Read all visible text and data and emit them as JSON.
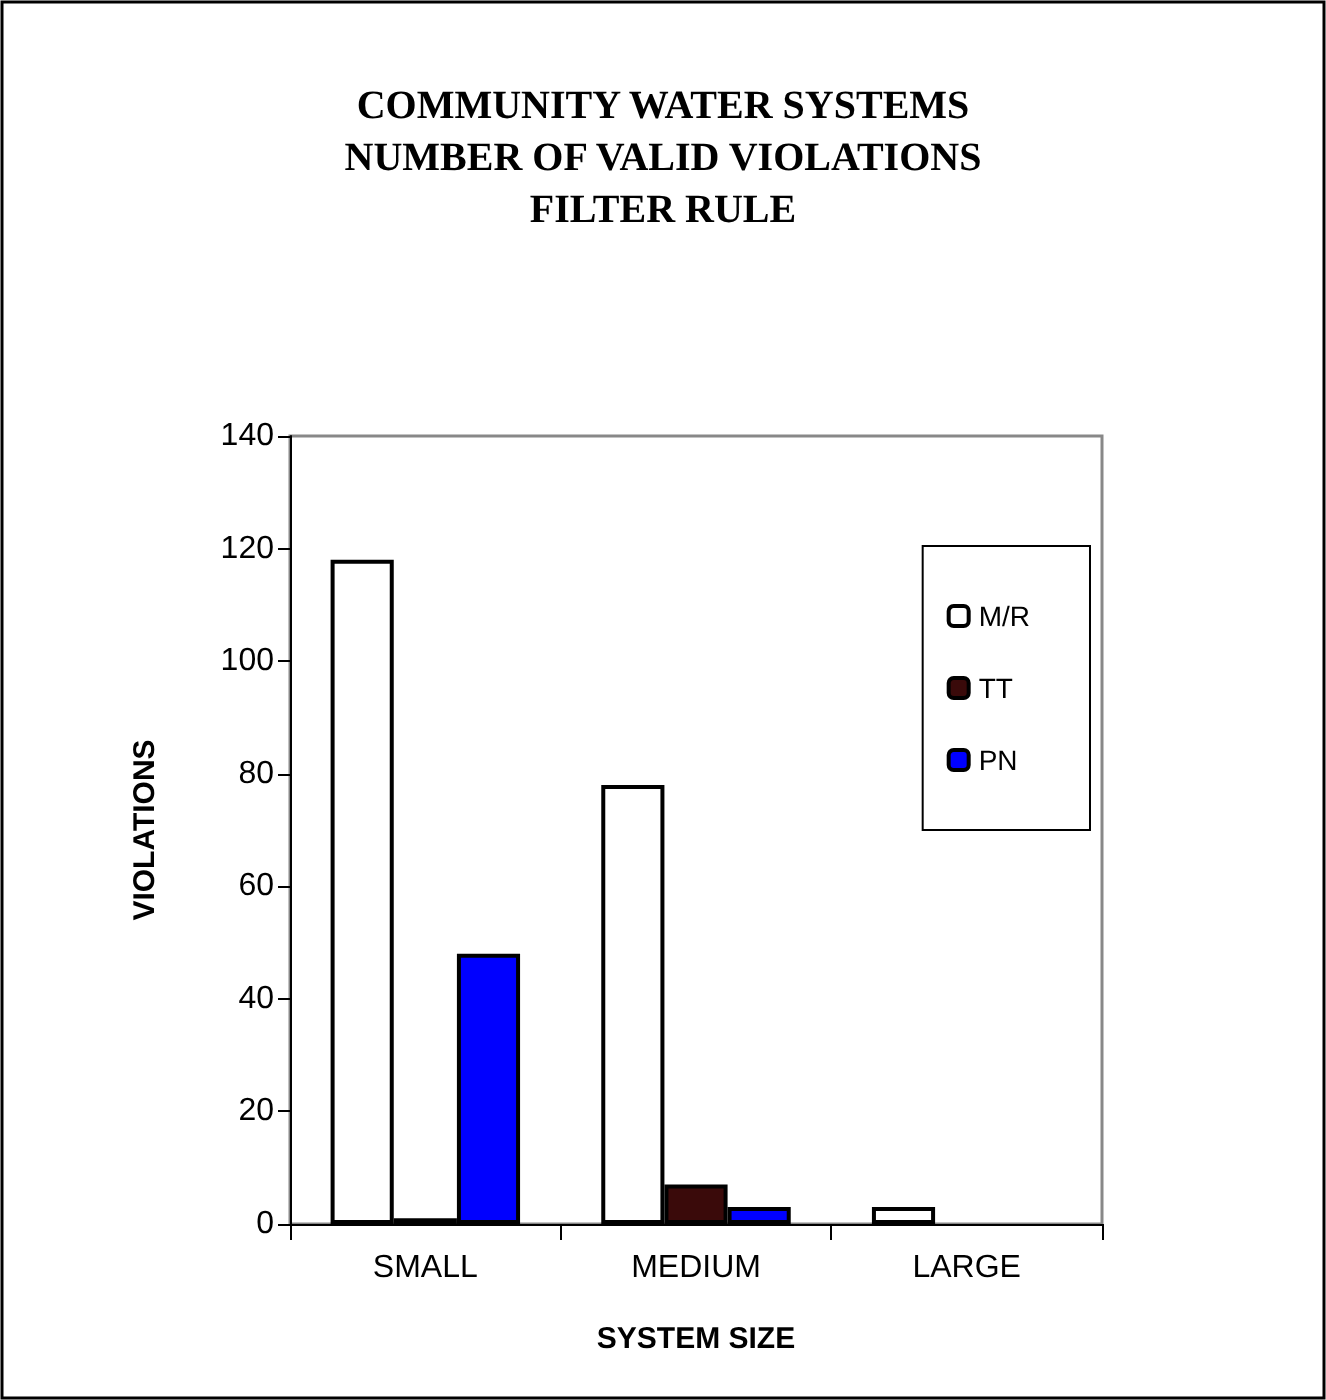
{
  "chart_data": {
    "type": "bar",
    "title": "COMMUNITY WATER SYSTEMS\nNUMBER OF VALID VIOLATIONS\nFILTER RULE",
    "xlabel": "SYSTEM SIZE",
    "ylabel": "VIOLATIONS",
    "categories": [
      "SMALL",
      "MEDIUM",
      "LARGE"
    ],
    "series": [
      {
        "name": "M/R",
        "color": "#ffffff",
        "values": [
          118,
          78,
          3
        ]
      },
      {
        "name": "TT",
        "color": "#3a0a0a",
        "values": [
          1,
          7,
          0
        ]
      },
      {
        "name": "PN",
        "color": "#0000ff",
        "values": [
          48,
          3,
          0
        ]
      }
    ],
    "ylim": [
      0,
      140
    ],
    "yticks": [
      0,
      20,
      40,
      60,
      80,
      100,
      120,
      140
    ],
    "grid": false,
    "legend": "top right"
  }
}
